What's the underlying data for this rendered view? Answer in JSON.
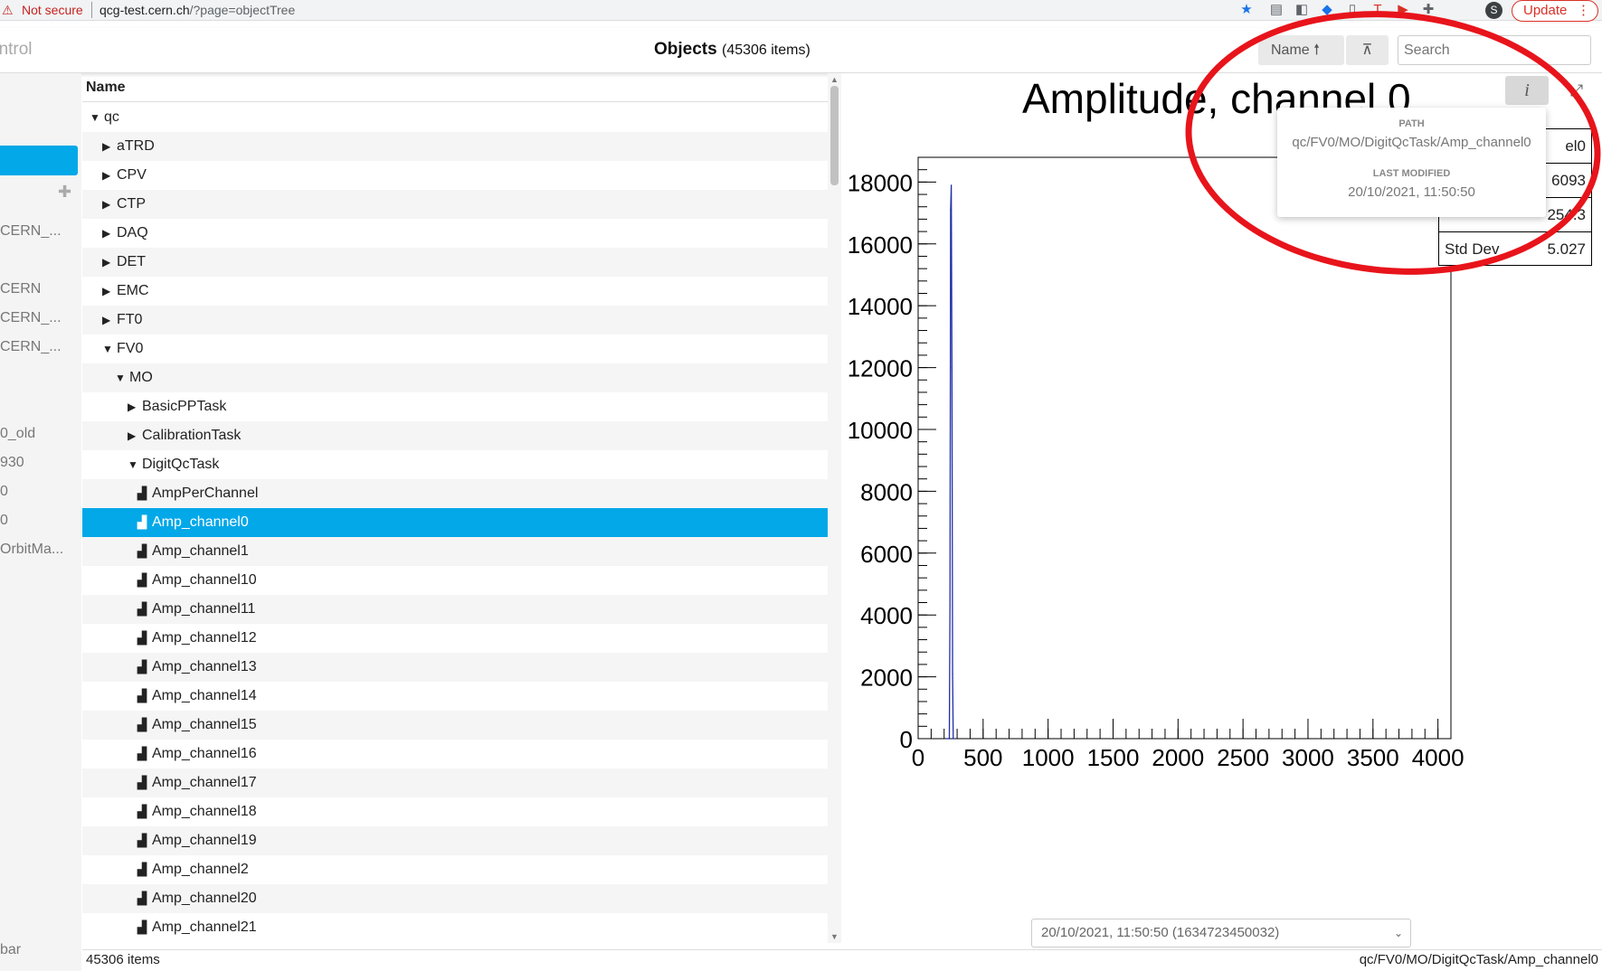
{
  "browser": {
    "security_label": "Not secure",
    "url_host": "qcg-test.cern.ch",
    "url_path": "/?page=objectTree",
    "profile_initial": "S",
    "update_label": "Update"
  },
  "header": {
    "app_title": "ontrol",
    "title": "Objects",
    "count": "(45306 items)",
    "sort_label": "Name",
    "search_placeholder": "Search"
  },
  "sidebar": {
    "items": [
      {
        "label": "CERN_..."
      },
      {
        "label": "CERN"
      },
      {
        "label": "CERN_..."
      },
      {
        "label": "CERN_..."
      },
      {
        "label": "0_old"
      },
      {
        "label": "930"
      },
      {
        "label": "0"
      },
      {
        "label": "0"
      },
      {
        "label": "OrbitMa..."
      }
    ],
    "bottom_label": "bar"
  },
  "tree": {
    "column_header": "Name",
    "rows": [
      {
        "label": "qc",
        "level": 0,
        "type": "open"
      },
      {
        "label": "aTRD",
        "level": 1,
        "type": "closed"
      },
      {
        "label": "CPV",
        "level": 1,
        "type": "closed"
      },
      {
        "label": "CTP",
        "level": 1,
        "type": "closed"
      },
      {
        "label": "DAQ",
        "level": 1,
        "type": "closed"
      },
      {
        "label": "DET",
        "level": 1,
        "type": "closed"
      },
      {
        "label": "EMC",
        "level": 1,
        "type": "closed"
      },
      {
        "label": "FT0",
        "level": 1,
        "type": "closed"
      },
      {
        "label": "FV0",
        "level": 1,
        "type": "open"
      },
      {
        "label": "MO",
        "level": 2,
        "type": "open"
      },
      {
        "label": "BasicPPTask",
        "level": 3,
        "type": "closed"
      },
      {
        "label": "CalibrationTask",
        "level": 3,
        "type": "closed"
      },
      {
        "label": "DigitQcTask",
        "level": 3,
        "type": "open"
      },
      {
        "label": "AmpPerChannel",
        "level": 4,
        "type": "hist"
      },
      {
        "label": "Amp_channel0",
        "level": 4,
        "type": "hist",
        "selected": true
      },
      {
        "label": "Amp_channel1",
        "level": 4,
        "type": "hist"
      },
      {
        "label": "Amp_channel10",
        "level": 4,
        "type": "hist"
      },
      {
        "label": "Amp_channel11",
        "level": 4,
        "type": "hist"
      },
      {
        "label": "Amp_channel12",
        "level": 4,
        "type": "hist"
      },
      {
        "label": "Amp_channel13",
        "level": 4,
        "type": "hist"
      },
      {
        "label": "Amp_channel14",
        "level": 4,
        "type": "hist"
      },
      {
        "label": "Amp_channel15",
        "level": 4,
        "type": "hist"
      },
      {
        "label": "Amp_channel16",
        "level": 4,
        "type": "hist"
      },
      {
        "label": "Amp_channel17",
        "level": 4,
        "type": "hist"
      },
      {
        "label": "Amp_channel18",
        "level": 4,
        "type": "hist"
      },
      {
        "label": "Amp_channel19",
        "level": 4,
        "type": "hist"
      },
      {
        "label": "Amp_channel2",
        "level": 4,
        "type": "hist"
      },
      {
        "label": "Amp_channel20",
        "level": 4,
        "type": "hist"
      },
      {
        "label": "Amp_channel21",
        "level": 4,
        "type": "hist"
      }
    ]
  },
  "status": {
    "left": "45306 items",
    "right": "qc/FV0/MO/DigitQcTask/Amp_channel0"
  },
  "plot": {
    "title": "Amplitude, channel 0",
    "stats": [
      {
        "label": "",
        "value": "el0"
      },
      {
        "label": "",
        "value": "6093"
      },
      {
        "label": "",
        "value": "254.3"
      },
      {
        "label": "Std Dev",
        "value": "5.027"
      }
    ],
    "tooltip": {
      "path_label": "PATH",
      "path": "qc/FV0/MO/DigitQcTask/Amp_channel0",
      "modified_label": "LAST MODIFIED",
      "modified": "20/10/2021, 11:50:50"
    },
    "version": "20/10/2021, 11:50:50 (1634723450032)"
  },
  "chart_data": {
    "type": "line",
    "title": "Amplitude, channel 0",
    "xlim": [
      0,
      4100
    ],
    "ylim": [
      0,
      18800
    ],
    "x_ticks": [
      0,
      500,
      1000,
      1500,
      2000,
      2500,
      3000,
      3500,
      4000
    ],
    "y_ticks": [
      0,
      2000,
      4000,
      6000,
      8000,
      10000,
      12000,
      14000,
      16000,
      18000
    ],
    "series": [
      {
        "x": [
          220,
          240,
          245,
          250,
          255,
          260,
          265,
          270,
          280
        ],
        "y": [
          0,
          0,
          4300,
          17100,
          17900,
          12000,
          2100,
          0,
          0
        ]
      }
    ],
    "line_color": "#1f2fa8"
  }
}
